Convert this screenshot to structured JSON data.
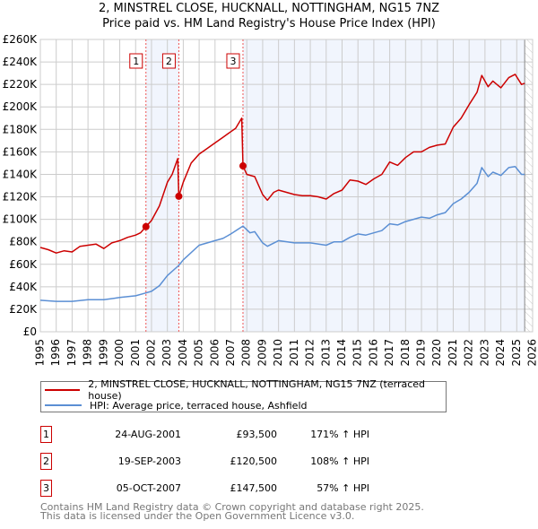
{
  "chart_data": {
    "type": "line",
    "title": "2, MINSTREL CLOSE, HUCKNALL, NOTTINGHAM, NG15 7NZ",
    "subtitle": "Price paid vs. HM Land Registry's House Price Index (HPI)",
    "xlim": [
      1995,
      2026
    ],
    "ylim": [
      0,
      260000
    ],
    "x_ticks": [
      "1995",
      "1996",
      "1997",
      "1998",
      "1999",
      "2000",
      "2001",
      "2002",
      "2003",
      "2004",
      "2005",
      "2006",
      "2007",
      "2008",
      "2009",
      "2010",
      "2011",
      "2012",
      "2013",
      "2014",
      "2015",
      "2016",
      "2017",
      "2018",
      "2019",
      "2020",
      "2021",
      "2022",
      "2023",
      "2024",
      "2025",
      "2026"
    ],
    "y_ticks": [
      {
        "value": 0,
        "label": "£0"
      },
      {
        "value": 20000,
        "label": "£20K"
      },
      {
        "value": 40000,
        "label": "£40K"
      },
      {
        "value": 60000,
        "label": "£60K"
      },
      {
        "value": 80000,
        "label": "£80K"
      },
      {
        "value": 100000,
        "label": "£100K"
      },
      {
        "value": 120000,
        "label": "£120K"
      },
      {
        "value": 140000,
        "label": "£140K"
      },
      {
        "value": 160000,
        "label": "£160K"
      },
      {
        "value": 180000,
        "label": "£180K"
      },
      {
        "value": 200000,
        "label": "£200K"
      },
      {
        "value": 220000,
        "label": "£220K"
      },
      {
        "value": 240000,
        "label": "£240K"
      },
      {
        "value": 260000,
        "label": "£260K"
      }
    ],
    "grid": true,
    "data_end_year": 2025.5,
    "series": [
      {
        "name": "2, MINSTREL CLOSE, HUCKNALL, NOTTINGHAM, NG15 7NZ (terraced house)",
        "color": "#cc0000",
        "x": [
          1995,
          1995.5,
          1996,
          1996.5,
          1997,
          1997.5,
          1998,
          1998.5,
          1999,
          1999.5,
          2000,
          2000.5,
          2001,
          2001.3,
          2001.65,
          2002,
          2002.5,
          2003,
          2003.3,
          2003.65,
          2003.72,
          2004,
          2004.5,
          2005,
          2005.5,
          2006,
          2006.5,
          2007,
          2007.3,
          2007.68,
          2007.76,
          2008,
          2008.5,
          2009,
          2009.3,
          2009.7,
          2010,
          2010.5,
          2011,
          2011.5,
          2012,
          2012.5,
          2013,
          2013.5,
          2014,
          2014.5,
          2015,
          2015.5,
          2016,
          2016.5,
          2017,
          2017.5,
          2018,
          2018.5,
          2019,
          2019.5,
          2020,
          2020.5,
          2021,
          2021.5,
          2022,
          2022.5,
          2022.8,
          2023.2,
          2023.5,
          2024,
          2024.5,
          2024.9,
          2025.3,
          2025.5
        ],
        "y": [
          75000,
          73000,
          70000,
          72000,
          71000,
          76000,
          77000,
          78000,
          74000,
          79000,
          81000,
          84000,
          86000,
          88000,
          93500,
          99000,
          112000,
          133000,
          140000,
          154000,
          120500,
          133000,
          150000,
          158000,
          163000,
          168000,
          173000,
          178000,
          181000,
          190000,
          147500,
          140000,
          138000,
          122000,
          117000,
          124000,
          126000,
          124000,
          122000,
          121000,
          121000,
          120000,
          118000,
          123000,
          126000,
          135000,
          134000,
          131000,
          136000,
          140000,
          151000,
          148000,
          155000,
          160000,
          160000,
          164000,
          166000,
          167000,
          182000,
          190000,
          202000,
          213000,
          228000,
          218000,
          223000,
          217000,
          226000,
          229000,
          220000,
          221000
        ]
      },
      {
        "name": "HPI: Average price, terraced house, Ashfield",
        "color": "#5b8fd4",
        "x": [
          1995,
          1996,
          1997,
          1998,
          1999,
          2000,
          2001,
          2001.65,
          2002,
          2002.5,
          2003,
          2003.72,
          2004,
          2005,
          2006,
          2006.5,
          2007,
          2007.76,
          2008.2,
          2008.5,
          2009,
          2009.3,
          2010,
          2011,
          2012,
          2013,
          2013.5,
          2014,
          2014.5,
          2015,
          2015.5,
          2016,
          2016.5,
          2017,
          2017.5,
          2018,
          2018.5,
          2019,
          2019.5,
          2020,
          2020.5,
          2021,
          2021.5,
          2022,
          2022.5,
          2022.8,
          2023.2,
          2023.5,
          2024,
          2024.5,
          2024.9,
          2025.3,
          2025.5
        ],
        "y": [
          28000,
          27000,
          27000,
          28500,
          28500,
          30500,
          32000,
          34500,
          36000,
          41000,
          50000,
          59000,
          64000,
          77000,
          81000,
          83000,
          87000,
          94000,
          88000,
          89000,
          79000,
          76000,
          81000,
          79000,
          79000,
          77000,
          80000,
          80000,
          84000,
          87000,
          86000,
          88000,
          90000,
          96000,
          95000,
          98000,
          100000,
          102000,
          101000,
          104000,
          106000,
          114000,
          118000,
          124000,
          132000,
          146000,
          138000,
          142000,
          139000,
          146000,
          147000,
          140000,
          140000
        ]
      }
    ],
    "sales": [
      {
        "num": "1",
        "x": 2001.65,
        "y": 93500
      },
      {
        "num": "2",
        "x": 2003.72,
        "y": 120500
      },
      {
        "num": "3",
        "x": 2007.76,
        "y": 147500
      }
    ]
  },
  "legend": {
    "property": "2, MINSTREL CLOSE, HUCKNALL, NOTTINGHAM, NG15 7NZ (terraced house)",
    "hpi": "HPI: Average price, terraced house, Ashfield"
  },
  "sales_table": [
    {
      "num": "1",
      "date": "24-AUG-2001",
      "price": "£93,500",
      "hpi": "171% ↑ HPI"
    },
    {
      "num": "2",
      "date": "19-SEP-2003",
      "price": "£120,500",
      "hpi": "108% ↑ HPI"
    },
    {
      "num": "3",
      "date": "05-OCT-2007",
      "price": "£147,500",
      "hpi": "57% ↑ HPI"
    }
  ],
  "footer": {
    "line1": "Contains HM Land Registry data © Crown copyright and database right 2025.",
    "line2": "This data is licensed under the Open Government Licence v3.0."
  }
}
